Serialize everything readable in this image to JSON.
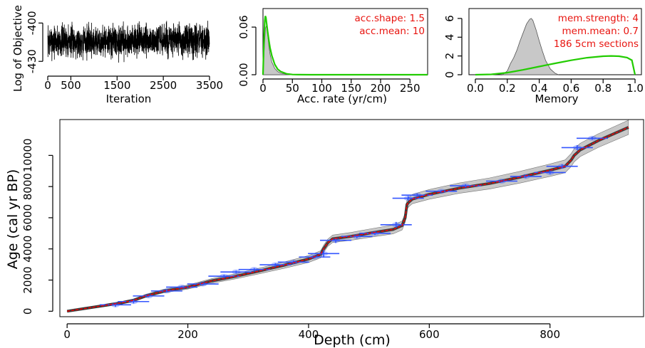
{
  "chart_data": [
    {
      "id": "objective",
      "type": "line",
      "xlabel": "Iteration",
      "ylabel": "Log of Objective",
      "xlim": [
        0,
        3500
      ],
      "ylim": [
        -436,
        -392
      ],
      "xticks": [
        0,
        500,
        1500,
        2500,
        3500
      ],
      "yticks": [
        -400,
        -430
      ],
      "series": [
        {
          "n_points": 3500,
          "mean": -414,
          "spread": 8,
          "color": "#000000"
        }
      ]
    },
    {
      "id": "acc_rate",
      "type": "area",
      "xlabel": "Acc. rate (yr/cm)",
      "ylabel": "",
      "xlim": [
        0,
        280
      ],
      "ylim": [
        0,
        0.078
      ],
      "xticks": [
        0,
        50,
        100,
        150,
        200,
        250
      ],
      "yticks": [
        0.0,
        0.06
      ],
      "ytick_labels": [
        "0.00",
        "0.06"
      ],
      "annotations": [
        "acc.shape:  1.5",
        "acc.mean:  10"
      ],
      "series": [
        {
          "name": "posterior",
          "color": "#c8c8c8",
          "x": [
            0,
            2,
            4,
            6,
            8,
            10,
            12,
            15,
            20,
            25,
            30,
            40,
            50
          ],
          "y": [
            0,
            0.03,
            0.058,
            0.062,
            0.05,
            0.036,
            0.026,
            0.016,
            0.008,
            0.004,
            0.002,
            0.0005,
            0
          ]
        },
        {
          "name": "prior",
          "color": "#22cc00",
          "x": [
            0,
            2,
            3,
            4,
            5,
            6,
            8,
            10,
            12,
            15,
            20,
            25,
            30,
            40,
            50,
            60,
            80,
            100,
            150,
            200,
            250,
            280
          ],
          "y": [
            0,
            0.05,
            0.068,
            0.074,
            0.072,
            0.066,
            0.054,
            0.043,
            0.034,
            0.024,
            0.013,
            0.007,
            0.004,
            0.0012,
            0.0003,
            0.0001,
            0,
            0,
            0,
            0,
            0,
            0
          ]
        }
      ]
    },
    {
      "id": "memory",
      "type": "area",
      "xlabel": "Memory",
      "ylabel": "",
      "xlim": [
        -0.04,
        1.04
      ],
      "ylim": [
        0,
        6.6
      ],
      "xticks": [
        0.0,
        0.2,
        0.4,
        0.6,
        0.8,
        1.0
      ],
      "xtick_labels": [
        "0.0",
        "0.2",
        "0.4",
        "0.6",
        "0.8",
        "1.0"
      ],
      "yticks": [
        0,
        2,
        4,
        6
      ],
      "annotations": [
        "mem.strength: 4",
        "mem.mean: 0.7",
        "186 5cm sections"
      ],
      "series": [
        {
          "name": "posterior",
          "color": "#c8c8c8",
          "x": [
            0.17,
            0.2,
            0.22,
            0.24,
            0.26,
            0.28,
            0.3,
            0.32,
            0.34,
            0.35,
            0.36,
            0.38,
            0.4,
            0.42,
            0.44,
            0.47,
            0.5,
            0.52
          ],
          "y": [
            0,
            0.4,
            1.2,
            1.8,
            2.6,
            3.6,
            4.5,
            5.4,
            5.9,
            6.0,
            5.8,
            4.8,
            3.6,
            2.5,
            1.5,
            0.6,
            0.15,
            0
          ]
        },
        {
          "name": "prior",
          "color": "#22cc00",
          "x": [
            0.0,
            0.1,
            0.2,
            0.3,
            0.4,
            0.5,
            0.6,
            0.7,
            0.8,
            0.85,
            0.9,
            0.95,
            0.98,
            1.0
          ],
          "y": [
            0,
            0.04,
            0.22,
            0.52,
            0.87,
            1.21,
            1.54,
            1.81,
            1.97,
            2.0,
            1.97,
            1.83,
            1.55,
            0
          ]
        }
      ]
    },
    {
      "id": "age_depth",
      "type": "line",
      "xlabel": "Depth (cm)",
      "ylabel": "Age (cal yr BP)",
      "xlim": [
        -12,
        955
      ],
      "ylim": [
        -350,
        12300
      ],
      "xticks": [
        0,
        200,
        400,
        600,
        800
      ],
      "yticks": [
        0,
        2000,
        4000,
        6000,
        8000,
        10000
      ],
      "series": [
        {
          "name": "mean age-depth model",
          "color": "#ff0000",
          "x": [
            0,
            30,
            60,
            90,
            110,
            130,
            160,
            200,
            240,
            280,
            320,
            360,
            400,
            420,
            425,
            432,
            440,
            470,
            500,
            540,
            555,
            560,
            563,
            566,
            572,
            600,
            650,
            700,
            750,
            800,
            825,
            835,
            840,
            850,
            880,
            930
          ],
          "y": [
            0,
            180,
            360,
            540,
            700,
            980,
            1290,
            1550,
            1950,
            2250,
            2600,
            2960,
            3350,
            3650,
            4000,
            4400,
            4650,
            4800,
            5000,
            5250,
            5500,
            6000,
            6850,
            7000,
            7200,
            7500,
            7900,
            8200,
            8600,
            9050,
            9300,
            9700,
            10000,
            10350,
            10950,
            11800
          ]
        },
        {
          "name": "dated samples",
          "color": "#3355ff",
          "x": [
            80,
            110,
            135,
            165,
            190,
            225,
            260,
            280,
            310,
            345,
            375,
            410,
            425,
            445,
            480,
            510,
            545,
            565,
            580,
            620,
            660,
            720,
            760,
            800,
            820,
            845,
            870
          ],
          "y": [
            410,
            620,
            980,
            1300,
            1550,
            1750,
            2250,
            2520,
            2680,
            2980,
            3150,
            3480,
            3700,
            4550,
            4800,
            5000,
            5550,
            7250,
            7450,
            7700,
            8050,
            8350,
            8650,
            8900,
            9300,
            10500,
            11100
          ],
          "errors": [
            130,
            120,
            90,
            90,
            80,
            100,
            90,
            80,
            90,
            100,
            110,
            80,
            260,
            170,
            120,
            110,
            180,
            140,
            100,
            80,
            90,
            90,
            110,
            100,
            140,
            160,
            90
          ]
        }
      ]
    }
  ]
}
